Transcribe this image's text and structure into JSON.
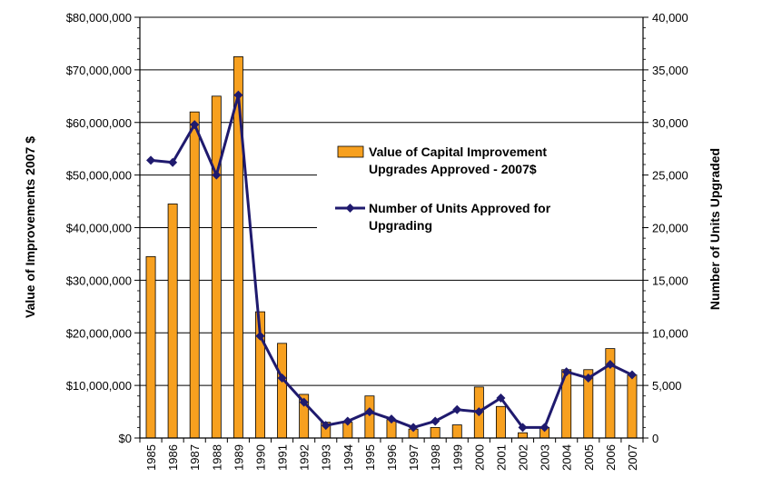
{
  "chart_data": {
    "type": "bar+line",
    "title": "",
    "categories": [
      "1985",
      "1986",
      "1987",
      "1988",
      "1989",
      "1990",
      "1991",
      "1992",
      "1993",
      "1994",
      "1995",
      "1996",
      "1997",
      "1998",
      "1999",
      "2000",
      "2001",
      "2002",
      "2003",
      "2004",
      "2005",
      "2006",
      "2007"
    ],
    "ylabel_left": "Value of Improvements 2007 $",
    "ylabel_right": "Number of Units Upgraded",
    "ylim_left": [
      0,
      80000000
    ],
    "ylim_right": [
      0,
      40000
    ],
    "yticks_left": [
      "$0",
      "$10,000,000",
      "$20,000,000",
      "$30,000,000",
      "$40,000,000",
      "$50,000,000",
      "$60,000,000",
      "$70,000,000",
      "$80,000,000"
    ],
    "yticks_right": [
      "0",
      "5,000",
      "10,000",
      "15,000",
      "20,000",
      "25,000",
      "30,000",
      "35,000",
      "40,000"
    ],
    "grid": "horizontal",
    "legend_position": "center-right",
    "series": [
      {
        "name": "Value of Capital Improvement Upgrades Approved - 2007$",
        "legend_lines": [
          "Value of Capital Improvement",
          "Upgrades Approved - 2007$"
        ],
        "type": "bar",
        "axis": "left",
        "color": "#F7A01F",
        "values": [
          34500000,
          44500000,
          62000000,
          65000000,
          72500000,
          24000000,
          18000000,
          8300000,
          3000000,
          3000000,
          8000000,
          3500000,
          1700000,
          2000000,
          2500000,
          9700000,
          6000000,
          1000000,
          2000000,
          13000000,
          13000000,
          17000000,
          12000000
        ]
      },
      {
        "name": "Number of Units Approved for Upgrading",
        "legend_lines": [
          "Number of Units Approved for",
          "Upgrading"
        ],
        "type": "line",
        "axis": "right",
        "color": "#1F1A6E",
        "values": [
          26400,
          26200,
          29800,
          25000,
          32600,
          9700,
          5700,
          3400,
          1200,
          1600,
          2500,
          1800,
          1000,
          1600,
          2700,
          2500,
          3800,
          1000,
          1000,
          6300,
          5700,
          7000,
          6000
        ]
      }
    ]
  }
}
